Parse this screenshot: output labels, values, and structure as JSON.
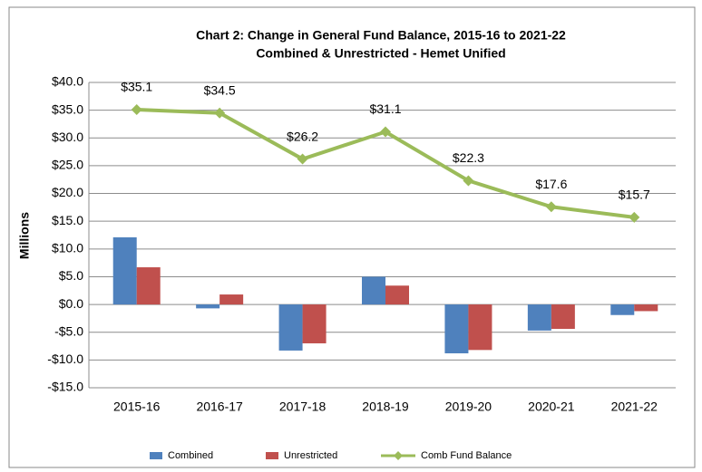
{
  "chart_data": {
    "type": "bar",
    "title": "Chart 2: Change in General Fund Balance, 2015-16 to 2021-22",
    "subtitle": "Combined & Unrestricted - Hemet Unified",
    "y_label": "Millions",
    "categories": [
      "2015-16",
      "2016-17",
      "2017-18",
      "2018-19",
      "2019-20",
      "2020-21",
      "2021-22"
    ],
    "series": [
      {
        "name": "Combined",
        "color": "#4f81bd",
        "type": "bar",
        "values": [
          12.1,
          -0.7,
          -8.3,
          5.0,
          -8.8,
          -4.7,
          -1.9
        ]
      },
      {
        "name": "Unrestricted",
        "color": "#c0504d",
        "type": "bar",
        "values": [
          6.7,
          1.8,
          -7.0,
          3.4,
          -8.2,
          -4.4,
          -1.2
        ]
      },
      {
        "name": "Comb Fund Balance",
        "color": "#9bbb59",
        "type": "line",
        "values": [
          35.1,
          34.5,
          26.2,
          31.1,
          22.3,
          17.6,
          15.7
        ],
        "value_labels": [
          "$35.1",
          "$34.5",
          "$26.2",
          "$31.1",
          "$22.3",
          "$17.6",
          "$15.7"
        ]
      }
    ],
    "ylim": [
      -15,
      40
    ],
    "yticks": [
      {
        "value": 40,
        "label": "$40.0"
      },
      {
        "value": 35,
        "label": "$35.0"
      },
      {
        "value": 30,
        "label": "$30.0"
      },
      {
        "value": 25,
        "label": "$25.0"
      },
      {
        "value": 20,
        "label": "$20.0"
      },
      {
        "value": 15,
        "label": "$15.0"
      },
      {
        "value": 10,
        "label": "$10.0"
      },
      {
        "value": 5,
        "label": "$5.0"
      },
      {
        "value": 0,
        "label": "$0.0"
      },
      {
        "value": -5,
        "label": "-$5.0"
      },
      {
        "value": -10,
        "label": "-$10.0"
      },
      {
        "value": -15,
        "label": "-$15.0"
      }
    ],
    "grid": true,
    "legend": "bottom"
  }
}
